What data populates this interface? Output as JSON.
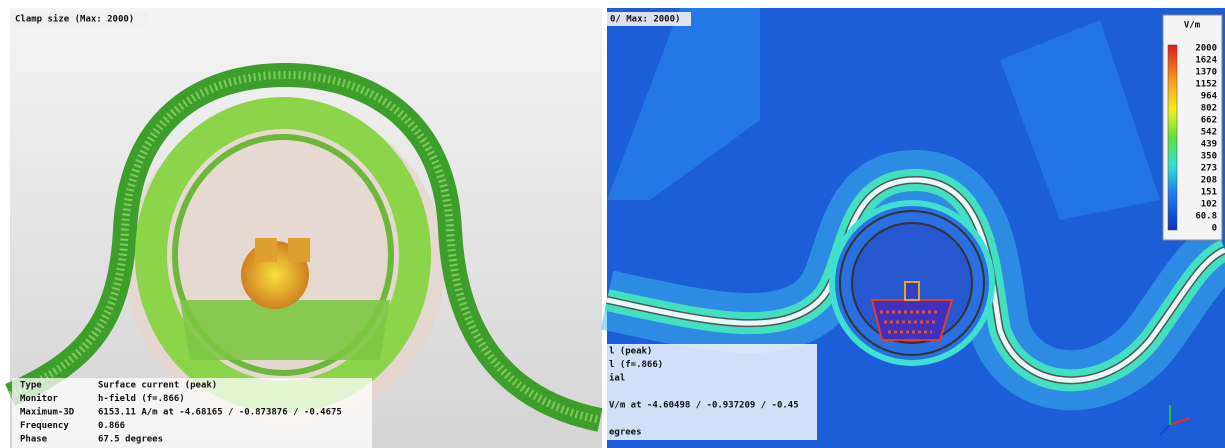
{
  "left_panel": {
    "header": "Clamp size (Max: 2000)",
    "info": {
      "rows": [
        [
          "Type",
          "Surface current (peak)"
        ],
        [
          "Monitor",
          "h-field (f=.866)"
        ],
        [
          "Maximum-3D",
          "6153.11 A/m at -4.68165 / -0.873876 / -0.4675"
        ],
        [
          "Frequency",
          "0.866"
        ],
        [
          "Phase",
          "67.5 degrees"
        ]
      ]
    }
  },
  "right_panel": {
    "header": "0/ Max: 2000)",
    "colorbar": {
      "unit": "V/m",
      "labels": [
        "2000",
        "1624",
        "1370",
        "1152",
        "964",
        "802",
        "662",
        "542",
        "439",
        "350",
        "273",
        "208",
        "151",
        "102",
        "60.8",
        "0"
      ]
    },
    "info": {
      "lines": [
        "l (peak)",
        "l (f=.866)",
        "ial",
        "",
        "V/m at -4.60498 / -0.937209 / -0.45",
        "",
        "egrees"
      ]
    }
  }
}
